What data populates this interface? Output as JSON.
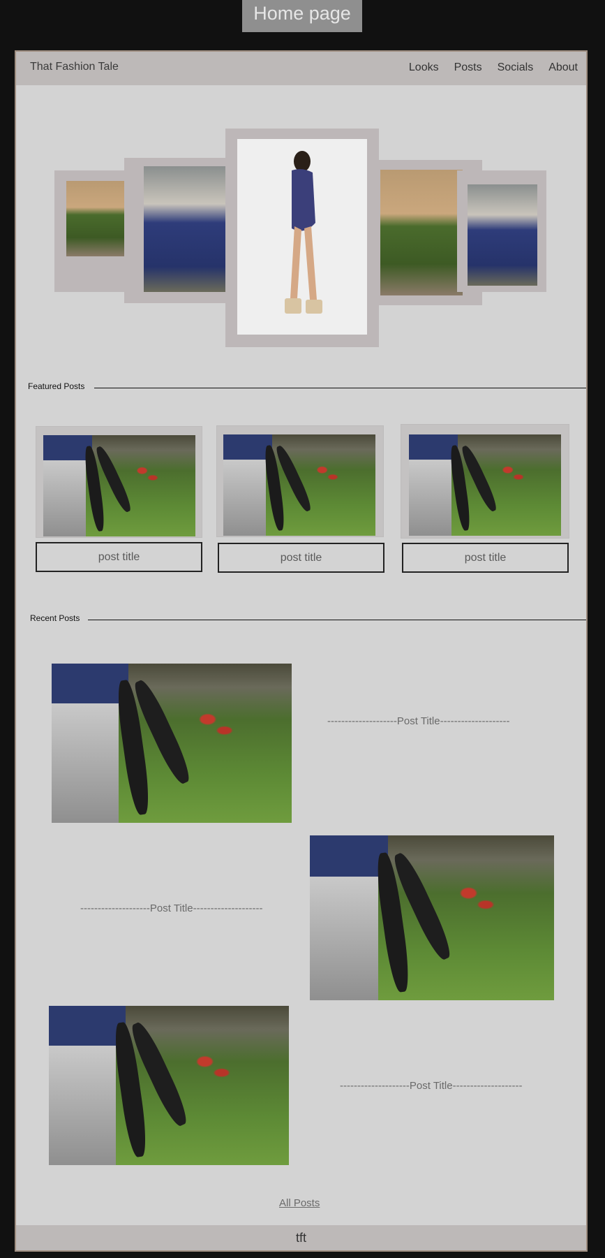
{
  "page_label": "Home page",
  "header": {
    "brand": "That Fashion Tale",
    "nav": [
      "Looks",
      "Posts",
      "Socials",
      "About"
    ]
  },
  "sections": {
    "featured": "Featured Posts",
    "recent": "Recent Posts"
  },
  "featured_posts": [
    {
      "title": "post title"
    },
    {
      "title": "post title"
    },
    {
      "title": "post title"
    }
  ],
  "recent_posts": [
    {
      "title": "--------------------Post Title--------------------"
    },
    {
      "title": "--------------------Post Title--------------------"
    },
    {
      "title": "--------------------Post Title--------------------"
    }
  ],
  "all_posts_link": "All Posts",
  "footer": "tft"
}
